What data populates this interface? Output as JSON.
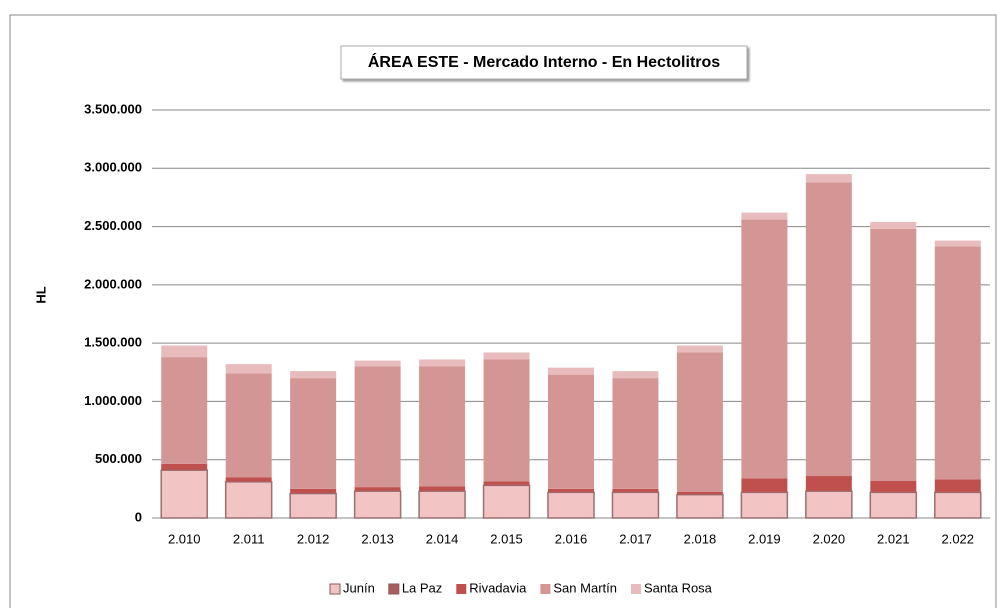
{
  "chart_data": {
    "type": "stacked_bar",
    "title": "ÁREA ESTE - Mercado Interno - En Hectolitros",
    "y_label": "HL",
    "categories": [
      "2.010",
      "2.011",
      "2.012",
      "2.013",
      "2.014",
      "2.015",
      "2.016",
      "2.017",
      "2.018",
      "2.019",
      "2.020",
      "2.021",
      "2.022"
    ],
    "series": [
      {
        "name": "Junín",
        "color": "#f2c4c4",
        "values": [
          410000,
          310000,
          210000,
          230000,
          230000,
          280000,
          220000,
          220000,
          200000,
          220000,
          230000,
          220000,
          220000
        ]
      },
      {
        "name": "La Paz",
        "color": "#a85c5c",
        "values": [
          5000,
          5000,
          5000,
          5000,
          5000,
          5000,
          5000,
          5000,
          5000,
          5000,
          5000,
          5000,
          5000
        ]
      },
      {
        "name": "Rivadavia",
        "color": "#c0504d",
        "values": [
          50000,
          35000,
          35000,
          30000,
          35000,
          30000,
          25000,
          25000,
          20000,
          115000,
          125000,
          95000,
          105000
        ]
      },
      {
        "name": "San Martín",
        "color": "#d49595",
        "values": [
          915000,
          890000,
          950000,
          1035000,
          1030000,
          1045000,
          980000,
          950000,
          1195000,
          2220000,
          2520000,
          2160000,
          2000000
        ]
      },
      {
        "name": "Santa Rosa",
        "color": "#e8bcbc",
        "values": [
          100000,
          80000,
          60000,
          50000,
          60000,
          60000,
          60000,
          60000,
          60000,
          60000,
          70000,
          60000,
          50000
        ]
      }
    ],
    "ylim": [
      0,
      3500000
    ],
    "yticks": [
      0,
      {
        "value": 500000,
        "label": "500.000"
      },
      {
        "value": 1000000,
        "label": "1.000.000"
      },
      {
        "value": 1500000,
        "label": "1.500.000"
      },
      {
        "value": 2000000,
        "label": "2.000.000"
      },
      {
        "value": 2500000,
        "label": "2.500.000"
      },
      {
        "value": 3000000,
        "label": "3.000.000"
      },
      {
        "value": 3500000,
        "label": "3.500.000"
      }
    ],
    "grid": true,
    "legend": "bottom"
  }
}
